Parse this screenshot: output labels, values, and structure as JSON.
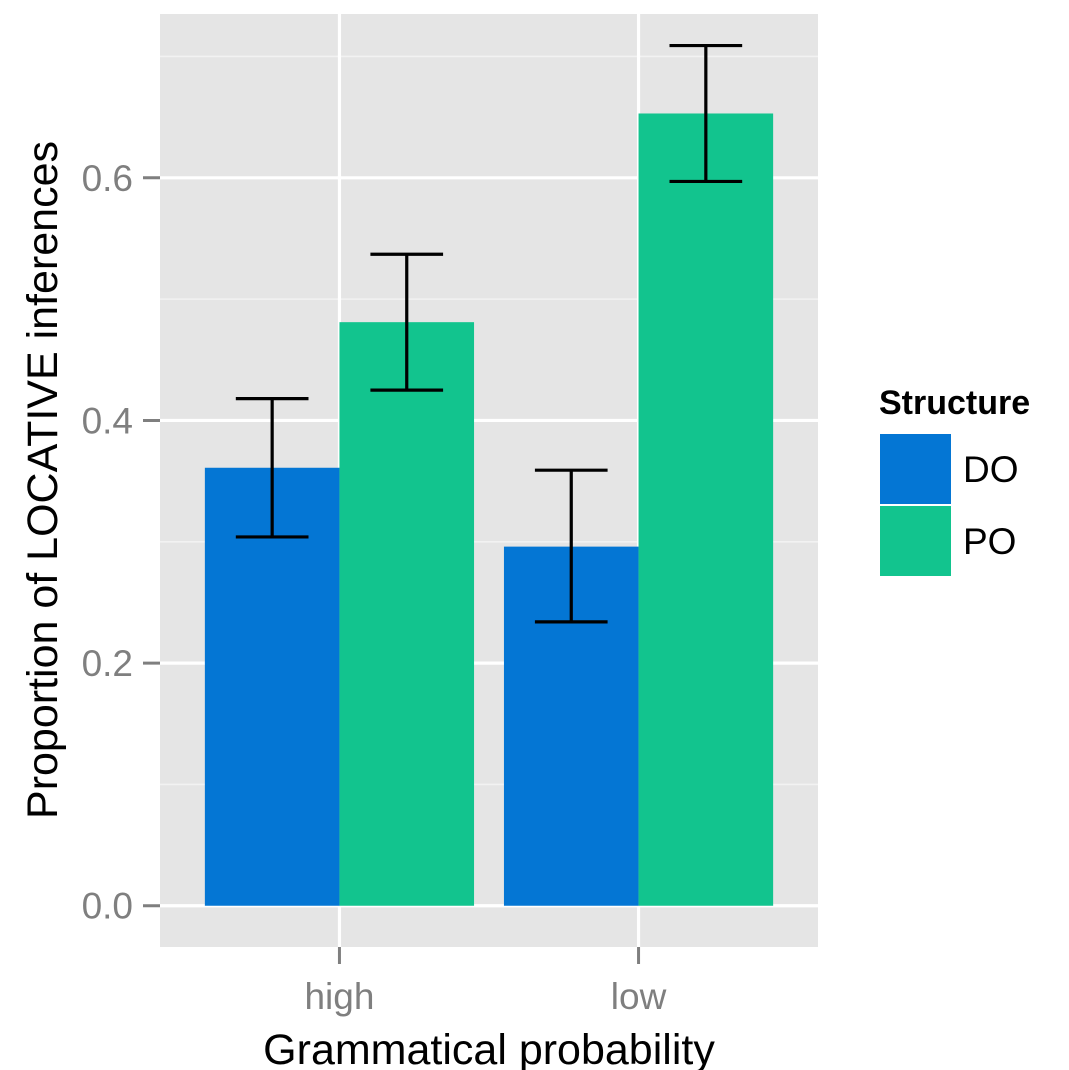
{
  "chart_data": {
    "type": "bar",
    "categories": [
      "high",
      "low"
    ],
    "series": [
      {
        "name": "DO",
        "color": "#0476D4",
        "values": [
          0.361,
          0.296
        ],
        "err_low": [
          0.304,
          0.234
        ],
        "err_high": [
          0.418,
          0.359
        ]
      },
      {
        "name": "PO",
        "color": "#12C48E",
        "values": [
          0.481,
          0.653
        ],
        "err_low": [
          0.425,
          0.597
        ],
        "err_high": [
          0.537,
          0.709
        ]
      }
    ],
    "xlabel": "Grammatical probability",
    "ylabel": "Proportion of LOCATIVE inferences",
    "yticks": [
      0.0,
      0.2,
      0.4,
      0.6
    ],
    "ytick_labels": [
      "0.0",
      "0.2",
      "0.4",
      "0.6"
    ],
    "ylim": [
      -0.034,
      0.735
    ],
    "legend_title": "Structure",
    "legend_position": "right",
    "grid": true,
    "panel_background": "#E5E5E5"
  }
}
